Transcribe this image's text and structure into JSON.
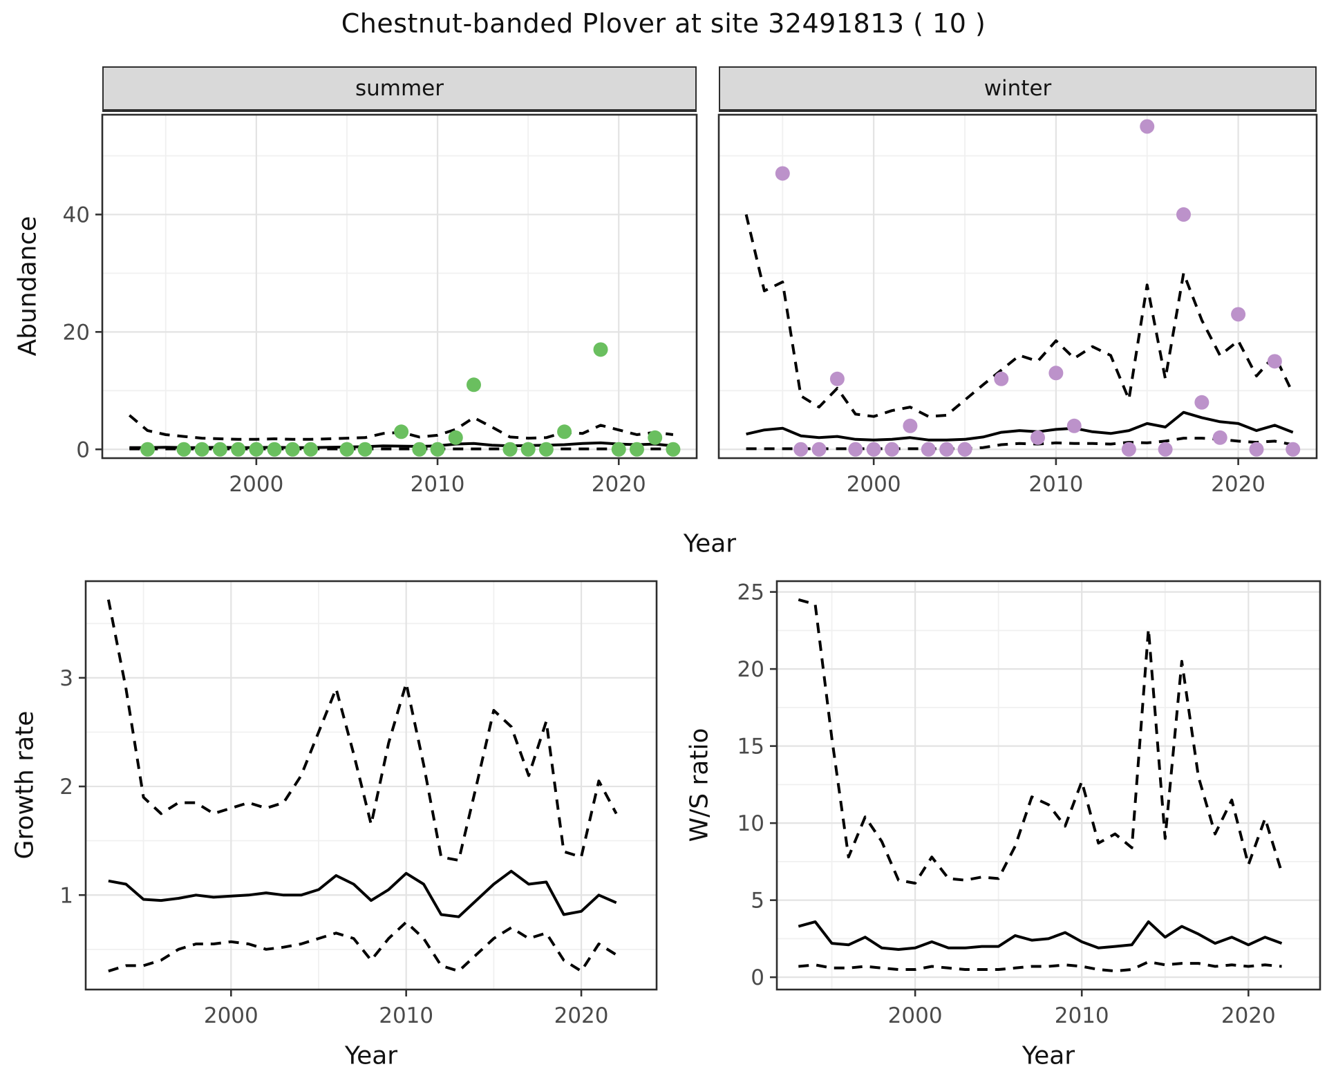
{
  "title": "Chestnut-banded Plover at site 32491813 ( 10 )",
  "facets": {
    "summer": "summer",
    "winter": "winter"
  },
  "axis_titles": {
    "abundance": "Abundance",
    "year_top": "Year",
    "growth_rate": "Growth rate",
    "ws_ratio": "W/S ratio",
    "year_bottom_left": "Year",
    "year_bottom_right": "Year"
  },
  "colors": {
    "summer_point": "#6abf5f",
    "winter_point": "#bc92ca",
    "line": "#000000",
    "strip_bg": "#d9d9d9",
    "strip_border": "#2e2e2e",
    "panel_border": "#2d2d2d",
    "grid_major": "#e3e3e3",
    "grid_minor": "#f0f0f0",
    "tick_text": "#4a4a4a",
    "background": "#ffffff"
  },
  "chart_data": [
    {
      "id": "abundance-summer",
      "type": "scatter",
      "facet": "summer",
      "x_label": "Year",
      "y_label": "Abundance",
      "xlim": [
        1991.5,
        2024.3
      ],
      "ylim": [
        -1.5,
        57
      ],
      "x_ticks": [
        2000,
        2010,
        2020
      ],
      "x_minor": [
        1995,
        2005,
        2015
      ],
      "y_ticks": [
        0,
        20,
        40
      ],
      "y_minor": [
        10,
        30,
        50
      ],
      "show_y_labels": true,
      "points": {
        "color": "summer_point",
        "x": [
          1994,
          1996,
          1997,
          1998,
          1999,
          2000,
          2001,
          2002,
          2003,
          2005,
          2006,
          2008,
          2009,
          2010,
          2011,
          2012,
          2014,
          2015,
          2016,
          2017,
          2019,
          2020,
          2021,
          2022,
          2023
        ],
        "y": [
          0,
          0,
          0,
          0,
          0,
          0,
          0,
          0,
          0,
          0,
          0,
          3,
          0,
          0,
          2,
          11,
          0,
          0,
          0,
          3,
          17,
          0,
          0,
          2,
          0
        ]
      },
      "series": [
        {
          "name": "median",
          "style": "solid",
          "x": [
            1993,
            1994,
            1995,
            1996,
            1997,
            1998,
            1999,
            2000,
            2001,
            2002,
            2003,
            2004,
            2005,
            2006,
            2007,
            2008,
            2009,
            2010,
            2011,
            2012,
            2013,
            2014,
            2015,
            2016,
            2017,
            2018,
            2019,
            2020,
            2021,
            2022,
            2023
          ],
          "y": [
            0.3,
            0.3,
            0.35,
            0.3,
            0.3,
            0.35,
            0.3,
            0.3,
            0.35,
            0.3,
            0.3,
            0.35,
            0.4,
            0.45,
            0.6,
            0.55,
            0.5,
            0.6,
            0.9,
            1.0,
            0.7,
            0.6,
            0.65,
            0.7,
            0.8,
            1.0,
            1.1,
            0.9,
            0.8,
            0.9,
            0.6
          ]
        },
        {
          "name": "upper-ci",
          "style": "dashed",
          "x": [
            1993,
            1994,
            1995,
            1996,
            1997,
            1998,
            1999,
            2000,
            2001,
            2002,
            2003,
            2004,
            2005,
            2006,
            2007,
            2008,
            2009,
            2010,
            2011,
            2012,
            2013,
            2014,
            2015,
            2016,
            2017,
            2018,
            2019,
            2020,
            2021,
            2022,
            2023
          ],
          "y": [
            5.8,
            3.2,
            2.5,
            2.2,
            1.9,
            1.8,
            1.7,
            1.7,
            1.8,
            1.7,
            1.7,
            1.8,
            1.9,
            2.0,
            2.7,
            2.9,
            2.1,
            2.4,
            3.4,
            5.4,
            3.8,
            2.1,
            1.9,
            2.0,
            2.9,
            2.7,
            4.1,
            3.3,
            2.5,
            2.9,
            2.5
          ]
        },
        {
          "name": "lower-ci",
          "style": "dashed",
          "x": [
            1993,
            1994,
            1995,
            1996,
            1997,
            1998,
            1999,
            2000,
            2001,
            2002,
            2003,
            2004,
            2005,
            2006,
            2007,
            2008,
            2009,
            2010,
            2011,
            2012,
            2013,
            2014,
            2015,
            2016,
            2017,
            2018,
            2019,
            2020,
            2021,
            2022,
            2023
          ],
          "y": [
            0.08,
            0.08,
            0.08,
            0.08,
            0.08,
            0.08,
            0.08,
            0.08,
            0.08,
            0.08,
            0.08,
            0.08,
            0.08,
            0.08,
            0.08,
            0.08,
            0.08,
            0.08,
            0.08,
            0.08,
            0.08,
            0.08,
            0.08,
            0.08,
            0.08,
            0.08,
            0.08,
            0.08,
            0.08,
            0.08,
            0.08
          ]
        }
      ]
    },
    {
      "id": "abundance-winter",
      "type": "scatter",
      "facet": "winter",
      "x_label": "Year",
      "y_label": "Abundance",
      "xlim": [
        1991.5,
        2024.3
      ],
      "ylim": [
        -1.5,
        57
      ],
      "x_ticks": [
        2000,
        2010,
        2020
      ],
      "x_minor": [
        1995,
        2005,
        2015
      ],
      "y_ticks": [
        0,
        20,
        40
      ],
      "y_minor": [
        10,
        30,
        50
      ],
      "show_y_labels": false,
      "points": {
        "color": "winter_point",
        "x": [
          1995,
          1996,
          1997,
          1998,
          1999,
          2000,
          2001,
          2002,
          2003,
          2004,
          2005,
          2007,
          2009,
          2010,
          2011,
          2014,
          2015,
          2016,
          2017,
          2018,
          2019,
          2020,
          2021,
          2022,
          2023
        ],
        "y": [
          47,
          0,
          0,
          12,
          0,
          0,
          0,
          4,
          0,
          0,
          0,
          12,
          2,
          13,
          4,
          0,
          55,
          0,
          40,
          8,
          2,
          23,
          0,
          15,
          0
        ]
      },
      "series": [
        {
          "name": "median",
          "style": "solid",
          "x": [
            1993,
            1994,
            1995,
            1996,
            1997,
            1998,
            1999,
            2000,
            2001,
            2002,
            2003,
            2004,
            2005,
            2006,
            2007,
            2008,
            2009,
            2010,
            2011,
            2012,
            2013,
            2014,
            2015,
            2016,
            2017,
            2018,
            2019,
            2020,
            2021,
            2022,
            2023
          ],
          "y": [
            2.6,
            3.3,
            3.6,
            2.3,
            2.0,
            2.2,
            1.7,
            1.6,
            1.7,
            2.0,
            1.6,
            1.6,
            1.7,
            2.1,
            2.9,
            3.2,
            3.0,
            3.4,
            3.6,
            3.0,
            2.7,
            3.2,
            4.4,
            3.8,
            6.3,
            5.4,
            4.7,
            4.4,
            3.2,
            4.1,
            2.9
          ]
        },
        {
          "name": "upper-ci",
          "style": "dashed",
          "x": [
            1993,
            1994,
            1995,
            1996,
            1997,
            1998,
            1999,
            2000,
            2001,
            2002,
            2003,
            2004,
            2005,
            2006,
            2007,
            2008,
            2009,
            2010,
            2011,
            2012,
            2013,
            2014,
            2015,
            2016,
            2017,
            2018,
            2019,
            2020,
            2021,
            2022,
            2023
          ],
          "y": [
            40,
            27,
            28.5,
            9.1,
            7.2,
            10.4,
            6.0,
            5.6,
            6.6,
            7.2,
            5.6,
            5.8,
            8.4,
            11,
            13.5,
            16,
            15,
            18.5,
            15.5,
            17.5,
            16,
            8.5,
            28,
            12,
            30,
            22,
            16,
            18.5,
            12.5,
            16,
            9.5
          ]
        },
        {
          "name": "lower-ci",
          "style": "dashed",
          "x": [
            1993,
            1994,
            1995,
            1996,
            1997,
            1998,
            1999,
            2000,
            2001,
            2002,
            2003,
            2004,
            2005,
            2006,
            2007,
            2008,
            2009,
            2010,
            2011,
            2012,
            2013,
            2014,
            2015,
            2016,
            2017,
            2018,
            2019,
            2020,
            2021,
            2022,
            2023
          ],
          "y": [
            0.1,
            0.1,
            0.1,
            0.1,
            0.1,
            0.1,
            0.1,
            0.1,
            0.1,
            0.1,
            0.1,
            0.1,
            0.1,
            0.3,
            0.8,
            1.0,
            0.9,
            1.1,
            1.0,
            1.0,
            0.9,
            1.2,
            1.1,
            1.4,
            1.9,
            1.9,
            1.7,
            1.4,
            1.2,
            1.4,
            0.8
          ]
        }
      ]
    },
    {
      "id": "growth-rate",
      "type": "line",
      "facet": null,
      "x_label": "Year",
      "y_label": "Growth rate",
      "xlim": [
        1991.7,
        2024.3
      ],
      "ylim": [
        0.13,
        3.89
      ],
      "x_ticks": [
        2000,
        2010,
        2020
      ],
      "x_minor": [
        1995,
        2005,
        2015
      ],
      "y_ticks": [
        1,
        2,
        3
      ],
      "y_minor": [
        0.5,
        1.5,
        2.5,
        3.5
      ],
      "show_y_labels": true,
      "series": [
        {
          "name": "median",
          "style": "solid",
          "x": [
            1993,
            1994,
            1995,
            1996,
            1997,
            1998,
            1999,
            2000,
            2001,
            2002,
            2003,
            2004,
            2005,
            2006,
            2007,
            2008,
            2009,
            2010,
            2011,
            2012,
            2013,
            2014,
            2015,
            2016,
            2017,
            2018,
            2019,
            2020,
            2021,
            2022
          ],
          "y": [
            1.13,
            1.1,
            0.96,
            0.95,
            0.97,
            1.0,
            0.98,
            0.99,
            1.0,
            1.02,
            1.0,
            1.0,
            1.05,
            1.18,
            1.1,
            0.95,
            1.05,
            1.2,
            1.1,
            0.82,
            0.8,
            0.95,
            1.1,
            1.22,
            1.1,
            1.12,
            0.82,
            0.85,
            1.0,
            0.93
          ]
        },
        {
          "name": "upper-ci",
          "style": "dashed",
          "x": [
            1993,
            1994,
            1995,
            1996,
            1997,
            1998,
            1999,
            2000,
            2001,
            2002,
            2003,
            2004,
            2005,
            2006,
            2007,
            2008,
            2009,
            2010,
            2011,
            2012,
            2013,
            2014,
            2015,
            2016,
            2017,
            2018,
            2019,
            2020,
            2021,
            2022
          ],
          "y": [
            3.72,
            2.9,
            1.9,
            1.75,
            1.85,
            1.85,
            1.75,
            1.8,
            1.85,
            1.8,
            1.85,
            2.1,
            2.5,
            2.9,
            2.3,
            1.65,
            2.4,
            2.95,
            2.2,
            1.35,
            1.32,
            2.0,
            2.7,
            2.55,
            2.1,
            2.6,
            1.4,
            1.35,
            2.05,
            1.75
          ]
        },
        {
          "name": "lower-ci",
          "style": "dashed",
          "x": [
            1993,
            1994,
            1995,
            1996,
            1997,
            1998,
            1999,
            2000,
            2001,
            2002,
            2003,
            2004,
            2005,
            2006,
            2007,
            2008,
            2009,
            2010,
            2011,
            2012,
            2013,
            2014,
            2015,
            2016,
            2017,
            2018,
            2019,
            2020,
            2021,
            2022
          ],
          "y": [
            0.3,
            0.35,
            0.35,
            0.4,
            0.5,
            0.55,
            0.55,
            0.57,
            0.55,
            0.5,
            0.52,
            0.55,
            0.6,
            0.65,
            0.6,
            0.4,
            0.6,
            0.75,
            0.6,
            0.35,
            0.3,
            0.45,
            0.6,
            0.7,
            0.6,
            0.65,
            0.4,
            0.3,
            0.55,
            0.45
          ]
        }
      ]
    },
    {
      "id": "ws-ratio",
      "type": "line",
      "facet": null,
      "x_label": "Year",
      "y_label": "W/S ratio",
      "xlim": [
        1991.7,
        2024.3
      ],
      "ylim": [
        -0.8,
        25.7
      ],
      "x_ticks": [
        2000,
        2010,
        2020
      ],
      "x_minor": [
        1995,
        2005,
        2015
      ],
      "y_ticks": [
        0,
        5,
        10,
        15,
        20,
        25
      ],
      "y_minor": [
        2.5,
        7.5,
        12.5,
        17.5,
        22.5
      ],
      "show_y_labels": true,
      "series": [
        {
          "name": "median",
          "style": "solid",
          "x": [
            1993,
            1994,
            1995,
            1996,
            1997,
            1998,
            1999,
            2000,
            2001,
            2002,
            2003,
            2004,
            2005,
            2006,
            2007,
            2008,
            2009,
            2010,
            2011,
            2012,
            2013,
            2014,
            2015,
            2016,
            2017,
            2018,
            2019,
            2020,
            2021,
            2022
          ],
          "y": [
            3.3,
            3.6,
            2.2,
            2.1,
            2.6,
            1.9,
            1.8,
            1.9,
            2.3,
            1.9,
            1.9,
            2.0,
            2.0,
            2.7,
            2.4,
            2.5,
            2.9,
            2.3,
            1.9,
            2.0,
            2.1,
            3.6,
            2.6,
            3.3,
            2.8,
            2.2,
            2.6,
            2.1,
            2.6,
            2.2
          ]
        },
        {
          "name": "upper-ci",
          "style": "dashed",
          "x": [
            1993,
            1994,
            1995,
            1996,
            1997,
            1998,
            1999,
            2000,
            2001,
            2002,
            2003,
            2004,
            2005,
            2006,
            2007,
            2008,
            2009,
            2010,
            2011,
            2012,
            2013,
            2014,
            2015,
            2016,
            2017,
            2018,
            2019,
            2020,
            2021,
            2022
          ],
          "y": [
            24.5,
            24.2,
            15.5,
            7.8,
            10.4,
            8.8,
            6.3,
            6.1,
            7.8,
            6.4,
            6.3,
            6.5,
            6.4,
            8.5,
            11.7,
            11.2,
            9.8,
            12.7,
            8.7,
            9.3,
            8.4,
            22.6,
            9.0,
            20.5,
            13.0,
            9.3,
            11.5,
            7.3,
            10.3,
            6.8
          ]
        },
        {
          "name": "lower-ci",
          "style": "dashed",
          "x": [
            1993,
            1994,
            1995,
            1996,
            1997,
            1998,
            1999,
            2000,
            2001,
            2002,
            2003,
            2004,
            2005,
            2006,
            2007,
            2008,
            2009,
            2010,
            2011,
            2012,
            2013,
            2014,
            2015,
            2016,
            2017,
            2018,
            2019,
            2020,
            2021,
            2022
          ],
          "y": [
            0.7,
            0.8,
            0.6,
            0.6,
            0.7,
            0.6,
            0.5,
            0.5,
            0.7,
            0.6,
            0.5,
            0.5,
            0.5,
            0.6,
            0.7,
            0.7,
            0.8,
            0.7,
            0.5,
            0.4,
            0.5,
            1.0,
            0.8,
            0.9,
            0.9,
            0.7,
            0.8,
            0.7,
            0.8,
            0.7
          ]
        }
      ]
    }
  ]
}
